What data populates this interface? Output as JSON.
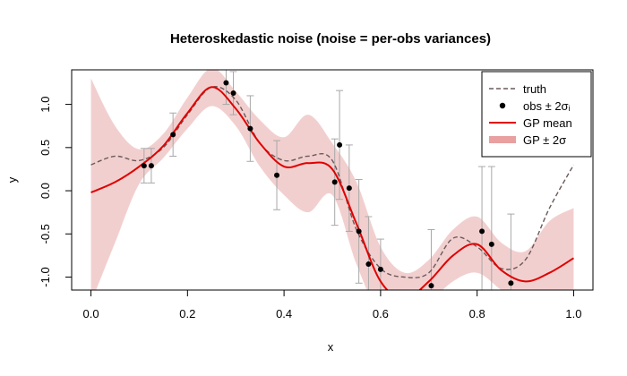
{
  "chart_data": {
    "type": "line",
    "title": "Heteroskedastic noise  (noise = per-obs variances)",
    "xlabel": "x",
    "ylabel": "y",
    "xlim": [
      -0.04,
      1.04
    ],
    "ylim": [
      -1.15,
      1.4
    ],
    "x_ticks": [
      0.0,
      0.2,
      0.4,
      0.6,
      0.8,
      1.0
    ],
    "x_tick_labels": [
      "0.0",
      "0.2",
      "0.4",
      "0.6",
      "0.8",
      "1.0"
    ],
    "y_ticks": [
      -1.0,
      -0.5,
      0.0,
      0.5,
      1.0
    ],
    "y_tick_labels": [
      "-1.0",
      "-0.5",
      "0.0",
      "0.5",
      "1.0"
    ],
    "legend_position": "top-right",
    "legend": [
      {
        "label": "truth",
        "style": "dashed-line",
        "color": "#6b5a5a"
      },
      {
        "label": "obs ± 2σᵢ",
        "style": "point",
        "color": "#000000"
      },
      {
        "label": "GP mean",
        "style": "line",
        "color": "#e00000"
      },
      {
        "label": "GP ± 2σ",
        "style": "band",
        "color": "#e8a0a0"
      }
    ],
    "colors": {
      "truth": "#6b5a5a",
      "obs": "#000000",
      "errorbar": "#a8a8a8",
      "gp_mean": "#e00000",
      "band": "#f2cfcf"
    },
    "truth": {
      "x": [
        0.0,
        0.05,
        0.1,
        0.15,
        0.2,
        0.25,
        0.3,
        0.35,
        0.4,
        0.45,
        0.5,
        0.55,
        0.6,
        0.65,
        0.7,
        0.75,
        0.8,
        0.85,
        0.9,
        0.95,
        1.0
      ],
      "y": [
        0.3,
        0.4,
        0.35,
        0.5,
        0.88,
        1.2,
        1.05,
        0.55,
        0.35,
        0.4,
        0.35,
        -0.45,
        -0.9,
        -1.0,
        -0.95,
        -0.55,
        -0.65,
        -0.9,
        -0.8,
        -0.2,
        0.3
      ]
    },
    "gp_mean": {
      "x": [
        0.0,
        0.05,
        0.1,
        0.15,
        0.2,
        0.25,
        0.3,
        0.35,
        0.4,
        0.45,
        0.5,
        0.55,
        0.6,
        0.65,
        0.7,
        0.75,
        0.8,
        0.85,
        0.9,
        0.95,
        1.0
      ],
      "y": [
        -0.02,
        0.1,
        0.28,
        0.52,
        0.9,
        1.2,
        0.95,
        0.55,
        0.28,
        0.32,
        0.25,
        -0.38,
        -1.05,
        -1.25,
        -1.05,
        -0.75,
        -0.62,
        -0.92,
        -1.05,
        -0.95,
        -0.78
      ]
    },
    "gp_band": {
      "x": [
        0.0,
        0.05,
        0.1,
        0.15,
        0.2,
        0.25,
        0.3,
        0.35,
        0.4,
        0.45,
        0.5,
        0.55,
        0.6,
        0.65,
        0.7,
        0.75,
        0.8,
        0.85,
        0.9,
        0.95,
        1.0
      ],
      "lower": [
        -1.3,
        -0.6,
        0.08,
        0.38,
        0.72,
        0.98,
        0.75,
        0.28,
        -0.05,
        -0.25,
        -0.05,
        -0.85,
        -1.45,
        -1.5,
        -1.3,
        -1.05,
        -0.95,
        -1.15,
        -1.35,
        -1.45,
        -1.35
      ],
      "upper": [
        1.3,
        0.75,
        0.48,
        0.66,
        1.08,
        1.42,
        1.15,
        0.82,
        0.62,
        0.88,
        0.55,
        0.1,
        -0.65,
        -0.95,
        -0.8,
        -0.45,
        -0.3,
        -0.6,
        -0.7,
        -0.35,
        -0.2
      ]
    },
    "observations": {
      "x": [
        0.11,
        0.125,
        0.17,
        0.28,
        0.295,
        0.33,
        0.385,
        0.505,
        0.515,
        0.535,
        0.555,
        0.575,
        0.6,
        0.705,
        0.81,
        0.83,
        0.87
      ],
      "y": [
        0.29,
        0.29,
        0.65,
        1.25,
        1.13,
        0.72,
        0.18,
        0.1,
        0.53,
        0.03,
        -0.47,
        -0.85,
        -0.91,
        -1.1,
        -0.47,
        -0.62,
        -1.07
      ],
      "err": [
        0.2,
        0.2,
        0.25,
        0.25,
        0.25,
        0.38,
        0.4,
        0.5,
        0.63,
        0.5,
        0.6,
        0.55,
        0.35,
        0.65,
        0.75,
        0.9,
        0.8
      ]
    }
  }
}
